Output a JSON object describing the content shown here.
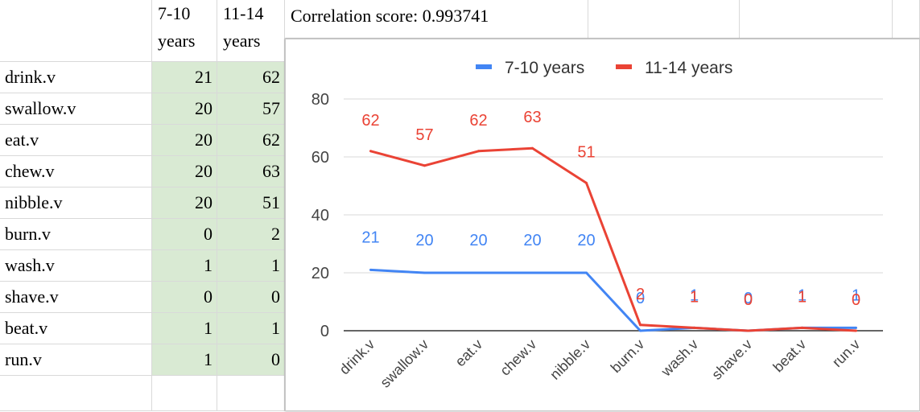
{
  "sheet": {
    "headers": {
      "col_b_line1": "7-10",
      "col_b_line2": "years",
      "col_c_line1": "11-14",
      "col_c_line2": "years"
    },
    "correlation_text": "Correlation score: 0.993741",
    "rows": [
      {
        "label": "drink.v",
        "a": "21",
        "b": "62"
      },
      {
        "label": "swallow.v",
        "a": "20",
        "b": "57"
      },
      {
        "label": "eat.v",
        "a": "20",
        "b": "62"
      },
      {
        "label": "chew.v",
        "a": "20",
        "b": "63"
      },
      {
        "label": "nibble.v",
        "a": "20",
        "b": "51"
      },
      {
        "label": "burn.v",
        "a": "0",
        "b": "2"
      },
      {
        "label": "wash.v",
        "a": "1",
        "b": "1"
      },
      {
        "label": "shave.v",
        "a": "0",
        "b": "0"
      },
      {
        "label": "beat.v",
        "a": "1",
        "b": "1"
      },
      {
        "label": "run.v",
        "a": "1",
        "b": "0"
      }
    ],
    "colors": {
      "number_cell_bg": "#d9ead3",
      "gridline": "#d9d9d9"
    }
  },
  "chart_data": {
    "type": "line",
    "categories": [
      "drink.v",
      "swallow.v",
      "eat.v",
      "chew.v",
      "nibble.v",
      "burn.v",
      "wash.v",
      "shave.v",
      "beat.v",
      "run.v"
    ],
    "series": [
      {
        "name": "7-10 years",
        "color": "#4285f4",
        "values": [
          21,
          20,
          20,
          20,
          20,
          0,
          1,
          0,
          1,
          1
        ]
      },
      {
        "name": "11-14 years",
        "color": "#ea4335",
        "values": [
          62,
          57,
          62,
          63,
          51,
          2,
          1,
          0,
          1,
          0
        ]
      }
    ],
    "yticks": [
      0,
      20,
      40,
      60,
      80
    ],
    "ylim": [
      0,
      80
    ],
    "legend_position": "top",
    "grid": true,
    "data_labels": true
  }
}
